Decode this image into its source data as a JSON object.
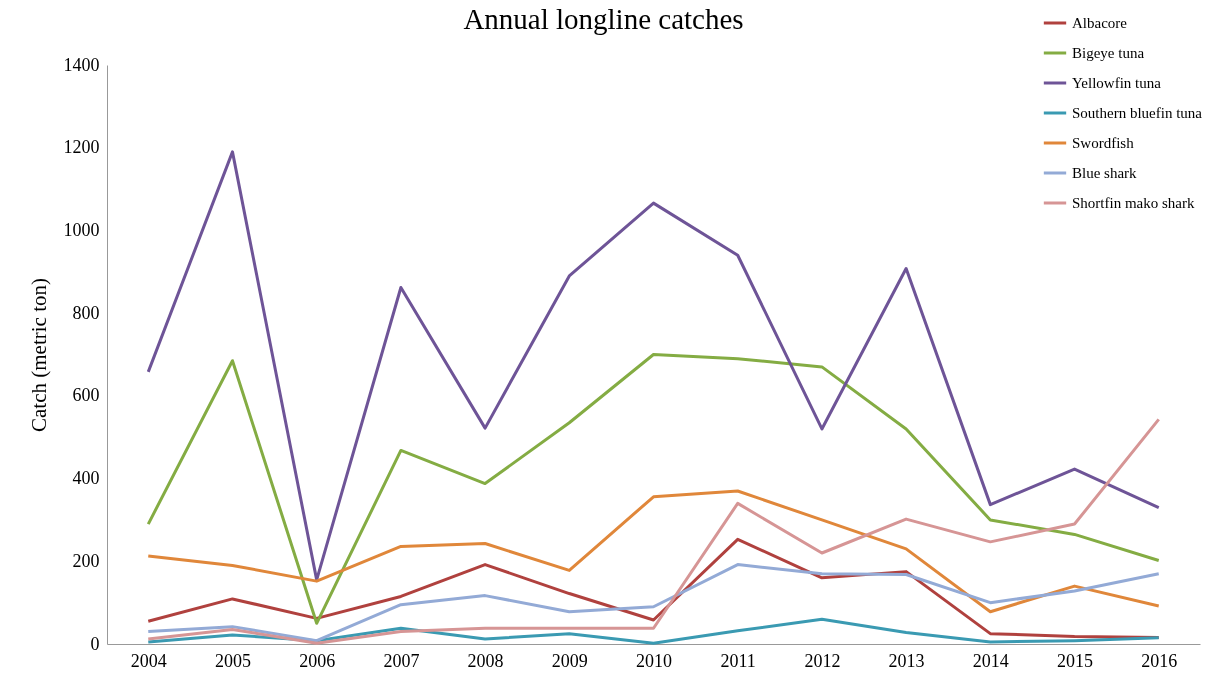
{
  "chart_data": {
    "type": "line",
    "title": "Annual longline catches",
    "ylabel": "Catch (metric ton)",
    "categories": [
      "2004",
      "2005",
      "2006",
      "2007",
      "2008",
      "2009",
      "2010",
      "2011",
      "2012",
      "2013",
      "2014",
      "2015",
      "2016"
    ],
    "series": [
      {
        "name": "Albacore",
        "color": "#b0413e",
        "values": [
          55,
          109,
          62,
          115,
          192,
          122,
          58,
          253,
          160,
          175,
          25,
          18,
          16
        ]
      },
      {
        "name": "Bigeye tuna",
        "color": "#84ac43",
        "values": [
          290,
          685,
          50,
          468,
          388,
          535,
          700,
          690,
          670,
          520,
          300,
          265,
          202
        ]
      },
      {
        "name": "Yellowfin tuna",
        "color": "#6e5497",
        "values": [
          658,
          1190,
          155,
          862,
          522,
          890,
          1066,
          940,
          520,
          908,
          337,
          423,
          330
        ]
      },
      {
        "name": "Southern bluefin tuna",
        "color": "#3a9ab2",
        "values": [
          5,
          22,
          8,
          38,
          12,
          25,
          2,
          32,
          60,
          28,
          5,
          8,
          15
        ]
      },
      {
        "name": "Swordfish",
        "color": "#e0873a",
        "values": [
          213,
          190,
          152,
          236,
          243,
          178,
          356,
          370,
          300,
          230,
          78,
          140,
          92
        ]
      },
      {
        "name": "Blue shark",
        "color": "#93aad6",
        "values": [
          30,
          42,
          8,
          95,
          117,
          78,
          90,
          192,
          170,
          168,
          100,
          128,
          170
        ]
      },
      {
        "name": "Shortfin mako shark",
        "color": "#d69595",
        "values": [
          12,
          35,
          2,
          30,
          38,
          38,
          38,
          340,
          220,
          302,
          247,
          290,
          543
        ]
      }
    ],
    "ylim": [
      0,
      1400
    ],
    "yticks": [
      0,
      200,
      400,
      600,
      800,
      {
        "value": 1000,
        "label": "1000"
      },
      {
        "value": 1200,
        "label": "1200"
      },
      {
        "value": 1400,
        "label": "1400"
      }
    ],
    "grid": false,
    "legend": "top right",
    "marker": "none",
    "line_style": "solid"
  }
}
